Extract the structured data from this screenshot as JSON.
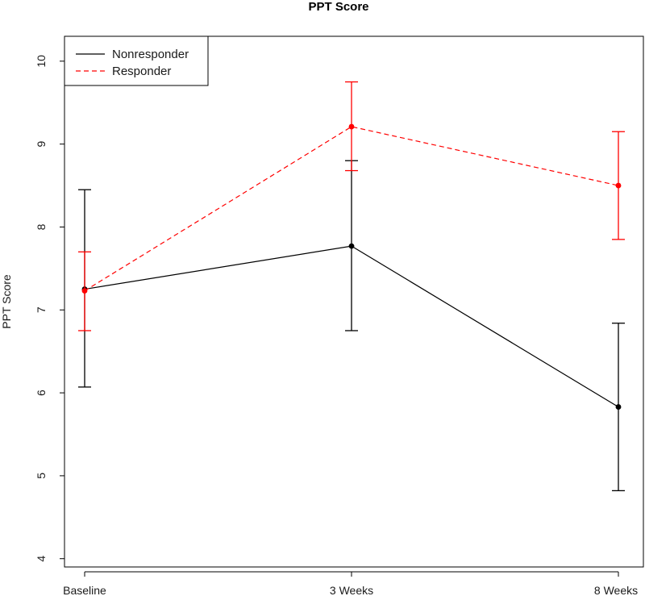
{
  "chart_data": {
    "type": "line",
    "title": "PPT Score",
    "xlabel": "",
    "ylabel": "PPT Score",
    "categories": [
      "Baseline",
      "3 Weeks",
      "8 Weeks"
    ],
    "y_ticks": [
      "4",
      "5",
      "6",
      "7",
      "8",
      "9",
      "10"
    ],
    "ylim": [
      3.9,
      10.3
    ],
    "grid": false,
    "legend_position": "top-left",
    "series": [
      {
        "name": "Nonresponder",
        "color": "#000000",
        "line_style": "solid",
        "values": [
          7.25,
          7.77,
          5.83
        ],
        "lower": [
          6.07,
          6.75,
          4.82
        ],
        "upper": [
          8.45,
          8.8,
          6.84
        ]
      },
      {
        "name": "Responder",
        "color": "#ff0000",
        "line_style": "dashed",
        "values": [
          7.23,
          9.21,
          8.5
        ],
        "lower": [
          6.75,
          8.68,
          7.85
        ],
        "upper": [
          7.7,
          9.75,
          9.15
        ]
      }
    ]
  }
}
